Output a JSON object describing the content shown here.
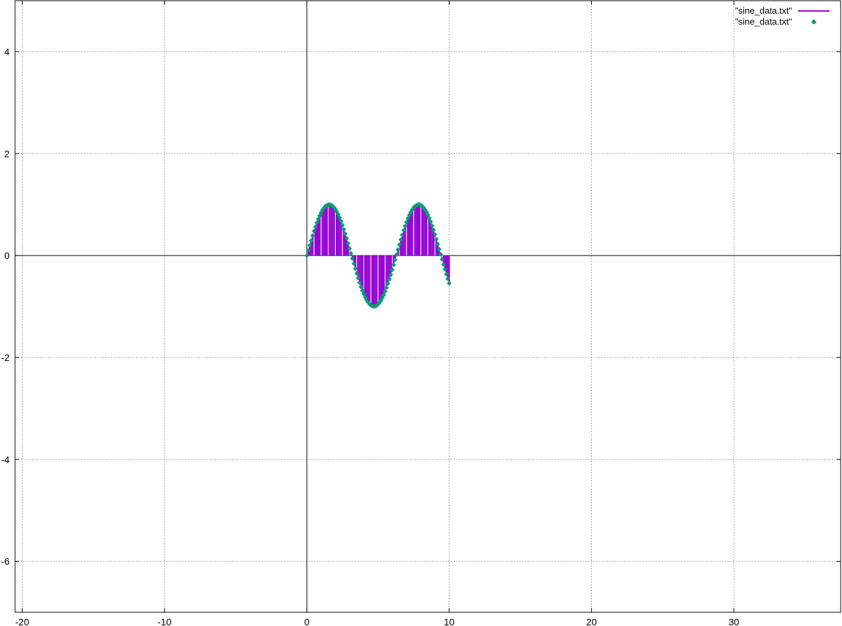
{
  "chart_data": {
    "type": "line",
    "x_range": [
      -20.5,
      37.5
    ],
    "y_range": [
      -7,
      5
    ],
    "x_ticks": [
      -20,
      -10,
      0,
      10,
      20,
      30
    ],
    "y_ticks": [
      -6,
      -4,
      -2,
      0,
      2,
      4
    ],
    "x_tick_labels": [
      "-20",
      "-10",
      "0",
      "10",
      "20",
      "30"
    ],
    "y_tick_labels": [
      "-6",
      "-4",
      "-2",
      "0",
      "2",
      "4"
    ],
    "grid": true,
    "zero_axes": true,
    "legend_position": "top-right",
    "series": [
      {
        "name": "\"sine_data.txt\"",
        "style": "impulses",
        "color": "#9400d3",
        "x": [
          0.0,
          0.1,
          0.2,
          0.3,
          0.4,
          0.5,
          0.6,
          0.7,
          0.8,
          0.9,
          1.0,
          1.1,
          1.2,
          1.3,
          1.4,
          1.5,
          1.6,
          1.7,
          1.8,
          1.9,
          2.0,
          2.1,
          2.2,
          2.3,
          2.4,
          2.5,
          2.6,
          2.7,
          2.8,
          2.9,
          3.0,
          3.1,
          3.2,
          3.3,
          3.4,
          3.5,
          3.6,
          3.7,
          3.8,
          3.9,
          4.0,
          4.1,
          4.2,
          4.3,
          4.4,
          4.5,
          4.6,
          4.7,
          4.8,
          4.9,
          5.0,
          5.1,
          5.2,
          5.3,
          5.4,
          5.5,
          5.6,
          5.7,
          5.8,
          5.9,
          6.0,
          6.1,
          6.2,
          6.3,
          6.4,
          6.5,
          6.6,
          6.7,
          6.8,
          6.9,
          7.0,
          7.1,
          7.2,
          7.3,
          7.4,
          7.5,
          7.6,
          7.7,
          7.8,
          7.9,
          8.0,
          8.1,
          8.2,
          8.3,
          8.4,
          8.5,
          8.6,
          8.7,
          8.8,
          8.9,
          9.0,
          9.1,
          9.2,
          9.3,
          9.4,
          9.5,
          9.6,
          9.7,
          9.8,
          9.9,
          10.0
        ],
        "y": [
          0.0,
          0.0998,
          0.1987,
          0.2955,
          0.3894,
          0.4794,
          0.5646,
          0.6442,
          0.7174,
          0.7833,
          0.8415,
          0.8912,
          0.932,
          0.9636,
          0.9854,
          0.9975,
          0.9996,
          0.9917,
          0.9738,
          0.9463,
          0.9093,
          0.8632,
          0.8085,
          0.7457,
          0.6755,
          0.5985,
          0.5155,
          0.4274,
          0.335,
          0.2392,
          0.1411,
          0.0416,
          -0.0584,
          -0.1577,
          -0.2555,
          -0.3508,
          -0.4425,
          -0.5298,
          -0.6119,
          -0.6878,
          -0.7568,
          -0.8183,
          -0.8716,
          -0.9162,
          -0.9516,
          -0.9775,
          -0.9937,
          -0.9999,
          -0.9962,
          -0.9825,
          -0.9589,
          -0.9258,
          -0.8835,
          -0.8323,
          -0.7728,
          -0.7055,
          -0.6313,
          -0.5507,
          -0.4646,
          -0.3739,
          -0.2794,
          -0.1822,
          -0.0831,
          0.0168,
          0.1165,
          0.2151,
          0.3115,
          0.4048,
          0.4941,
          0.5784,
          0.657,
          0.729,
          0.7937,
          0.8504,
          0.8987,
          0.938,
          0.9679,
          0.9882,
          0.9985,
          0.9989,
          0.9894,
          0.9699,
          0.9407,
          0.9022,
          0.8546,
          0.7985,
          0.7344,
          0.663,
          0.5849,
          0.501,
          0.4121,
          0.319,
          0.2229,
          0.1245,
          0.0248,
          -0.0752,
          -0.1743,
          -0.2718,
          -0.3665,
          -0.4575,
          -0.544
        ]
      },
      {
        "name": "\"sine_data.txt\"",
        "style": "points",
        "color": "#009e73",
        "same_data_as_series": 0
      }
    ]
  }
}
